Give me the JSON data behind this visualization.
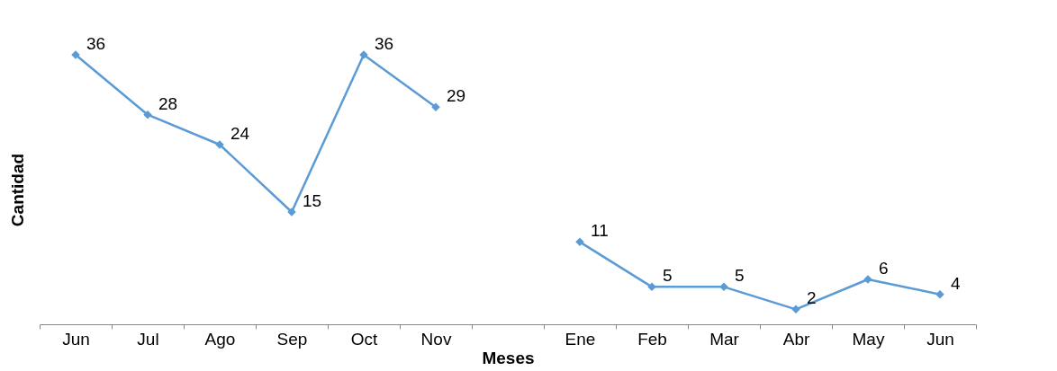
{
  "chart_data": {
    "type": "line",
    "xlabel": "Meses",
    "ylabel": "Cantidad",
    "categories": [
      "Jun",
      "Jul",
      "Ago",
      "Sep",
      "Oct",
      "Nov",
      null,
      "Ene",
      "Feb",
      "Mar",
      "Abr",
      "May",
      "Jun"
    ],
    "series": [
      {
        "color": "#5b9bd5",
        "values": [
          36,
          28,
          24,
          15,
          36,
          29,
          null,
          11,
          5,
          5,
          2,
          6,
          4
        ]
      }
    ],
    "data_labels": true,
    "marker": "diamond",
    "line_style": "solid",
    "grid": false
  }
}
